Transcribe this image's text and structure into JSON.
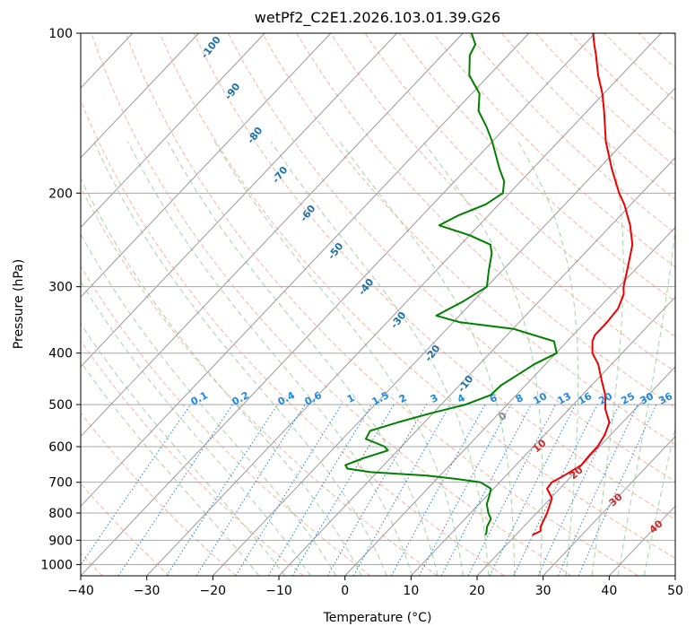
{
  "chart_data": {
    "type": "skew-t",
    "title": "wetPf2_C2E1.2026.103.01.39.G26",
    "xlabel": "Temperature (°C)",
    "ylabel": "Pressure (hPa)",
    "xlim": [
      -40,
      50
    ],
    "ylim": [
      1050,
      100
    ],
    "x_ticks": [
      -40,
      -30,
      -20,
      -10,
      0,
      10,
      20,
      30,
      40,
      50
    ],
    "x_tick_labels": [
      "−40",
      "−30",
      "−20",
      "−10",
      "0",
      "10",
      "20",
      "30",
      "40",
      "50"
    ],
    "y_ticks": [
      100,
      200,
      300,
      400,
      500,
      600,
      700,
      800,
      900,
      1000
    ],
    "y_tick_labels": [
      "100",
      "200",
      "300",
      "400",
      "500",
      "600",
      "700",
      "800",
      "900",
      "1000"
    ],
    "grid": true,
    "series": [
      {
        "name": "Temperature",
        "color": "#ee0000",
        "points": [
          [
            880,
            22.5
          ],
          [
            865,
            23.2
          ],
          [
            850,
            22.6
          ],
          [
            800,
            21.6
          ],
          [
            750,
            20.2
          ],
          [
            720,
            18.1
          ],
          [
            700,
            17.9
          ],
          [
            680,
            18.8
          ],
          [
            650,
            19.9
          ],
          [
            620,
            19.7
          ],
          [
            600,
            19.7
          ],
          [
            570,
            19.1
          ],
          [
            540,
            18.0
          ],
          [
            510,
            15.5
          ],
          [
            480,
            13.5
          ],
          [
            450,
            10.8
          ],
          [
            420,
            8.0
          ],
          [
            400,
            5.5
          ],
          [
            380,
            3.8
          ],
          [
            370,
            3.3
          ],
          [
            350,
            3.3
          ],
          [
            330,
            3.0
          ],
          [
            310,
            1.8
          ],
          [
            300,
            0.7
          ],
          [
            270,
            -2.0
          ],
          [
            250,
            -4.0
          ],
          [
            230,
            -7.1
          ],
          [
            210,
            -11.0
          ],
          [
            200,
            -13.4
          ],
          [
            180,
            -18.0
          ],
          [
            160,
            -22.8
          ],
          [
            140,
            -27.5
          ],
          [
            130,
            -30.2
          ],
          [
            120,
            -33.5
          ],
          [
            110,
            -36.7
          ],
          [
            105,
            -38.5
          ],
          [
            100,
            -40.3
          ]
        ]
      },
      {
        "name": "Dewpoint",
        "color": "#008000",
        "points": [
          [
            880,
            15.4
          ],
          [
            870,
            15.2
          ],
          [
            850,
            14.5
          ],
          [
            820,
            13.9
          ],
          [
            800,
            12.7
          ],
          [
            770,
            11.2
          ],
          [
            740,
            10.3
          ],
          [
            720,
            9.6
          ],
          [
            700,
            7.1
          ],
          [
            690,
            3.0
          ],
          [
            680,
            -2.0
          ],
          [
            670,
            -11.0
          ],
          [
            660,
            -15.0
          ],
          [
            650,
            -15.8
          ],
          [
            630,
            -14.0
          ],
          [
            610,
            -11.5
          ],
          [
            600,
            -12.5
          ],
          [
            580,
            -16.5
          ],
          [
            560,
            -17.0
          ],
          [
            540,
            -14.0
          ],
          [
            520,
            -10.5
          ],
          [
            500,
            -6.3
          ],
          [
            480,
            -3.9
          ],
          [
            460,
            -3.7
          ],
          [
            440,
            -2.7
          ],
          [
            420,
            -1.7
          ],
          [
            400,
            0.1
          ],
          [
            380,
            -2.0
          ],
          [
            360,
            -10.0
          ],
          [
            350,
            -19.0
          ],
          [
            340,
            -23.5
          ],
          [
            320,
            -21.5
          ],
          [
            300,
            -20.0
          ],
          [
            280,
            -22.0
          ],
          [
            260,
            -24.0
          ],
          [
            250,
            -25.5
          ],
          [
            240,
            -30.0
          ],
          [
            230,
            -36.0
          ],
          [
            220,
            -34.5
          ],
          [
            210,
            -32.0
          ],
          [
            200,
            -31.0
          ],
          [
            190,
            -32.5
          ],
          [
            180,
            -35.0
          ],
          [
            160,
            -40.0
          ],
          [
            150,
            -43.0
          ],
          [
            140,
            -46.5
          ],
          [
            130,
            -48.8
          ],
          [
            120,
            -53.0
          ],
          [
            110,
            -55.8
          ],
          [
            105,
            -56.5
          ],
          [
            100,
            -58.7
          ]
        ]
      }
    ],
    "dry_adiabat_labels": [
      "-100",
      "-90",
      "-80",
      "-70",
      "-60",
      "-50",
      "-40",
      "-30",
      "-20",
      "-10"
    ],
    "moist_adiabat_labels": [
      "0",
      "10",
      "20",
      "30",
      "40"
    ],
    "mixing_ratio_labels": [
      "0.1",
      "0.2",
      "0.4",
      "0.6",
      "1",
      "1.5",
      "2",
      "3",
      "4",
      "6",
      "8",
      "10",
      "13",
      "16",
      "20",
      "25",
      "30",
      "36"
    ],
    "mixing_ratio_values": [
      0.1,
      0.2,
      0.4,
      0.6,
      1,
      1.5,
      2,
      3,
      4,
      6,
      8,
      10,
      13,
      16,
      20,
      25,
      30,
      36
    ]
  },
  "colors": {
    "temperature": "#ee0000",
    "dewpoint": "#008000",
    "isotherm": "#9a9a9a",
    "isobar": "#a8a8a8",
    "dry_adiabat": "#f5a58a",
    "moist_adiabat": "#9ccf9c",
    "mixing_ratio": "#2a7fd8",
    "dry_label": "#1f6fa8",
    "moist_label": "#d62728",
    "freezing_label": "#888888"
  }
}
